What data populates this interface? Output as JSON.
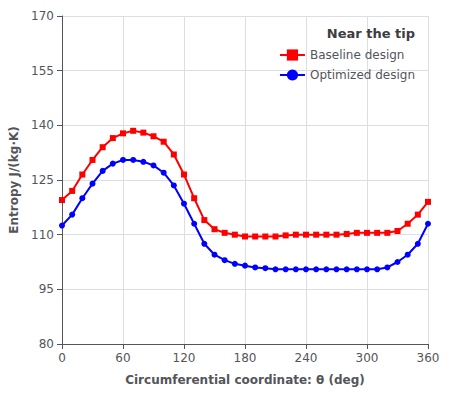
{
  "chart_data": {
    "type": "line",
    "title": "Near the tip",
    "xlabel": "Circumferential coordinate: θ (deg)",
    "ylabel": "Entropy J/(kg·K)",
    "xlim": [
      0,
      360
    ],
    "ylim": [
      80,
      170
    ],
    "xticks": [
      0,
      60,
      120,
      180,
      240,
      300,
      360
    ],
    "yticks": [
      80,
      95,
      110,
      125,
      140,
      155,
      170
    ],
    "grid": true,
    "legend": "upper right",
    "x": [
      0,
      10,
      20,
      30,
      40,
      50,
      60,
      70,
      80,
      90,
      100,
      110,
      120,
      130,
      140,
      150,
      160,
      170,
      180,
      190,
      200,
      210,
      220,
      230,
      240,
      250,
      260,
      270,
      280,
      290,
      300,
      310,
      320,
      330,
      340,
      350,
      360
    ],
    "series": [
      {
        "name": "Baseline design",
        "color": "#FF0000",
        "marker": "square",
        "values": [
          119.5,
          122.0,
          126.5,
          130.5,
          134.0,
          136.5,
          137.8,
          138.5,
          138.0,
          137.0,
          135.5,
          132.0,
          126.5,
          120.0,
          114.0,
          111.5,
          110.5,
          110.0,
          109.5,
          109.5,
          109.5,
          109.5,
          109.8,
          110.0,
          110.0,
          110.0,
          110.0,
          110.0,
          110.2,
          110.5,
          110.5,
          110.5,
          110.5,
          111.0,
          113.0,
          115.5,
          119.0
        ]
      },
      {
        "name": "Optimized design",
        "color": "#0000FF",
        "marker": "circle",
        "values": [
          112.5,
          115.5,
          120.0,
          124.0,
          127.5,
          129.5,
          130.5,
          130.5,
          130.0,
          129.0,
          127.0,
          123.5,
          118.5,
          113.0,
          107.5,
          104.5,
          103.0,
          102.0,
          101.5,
          101.0,
          100.8,
          100.5,
          100.5,
          100.5,
          100.5,
          100.5,
          100.5,
          100.5,
          100.5,
          100.5,
          100.5,
          100.5,
          101.0,
          102.5,
          104.5,
          107.5,
          113.0
        ]
      }
    ]
  }
}
